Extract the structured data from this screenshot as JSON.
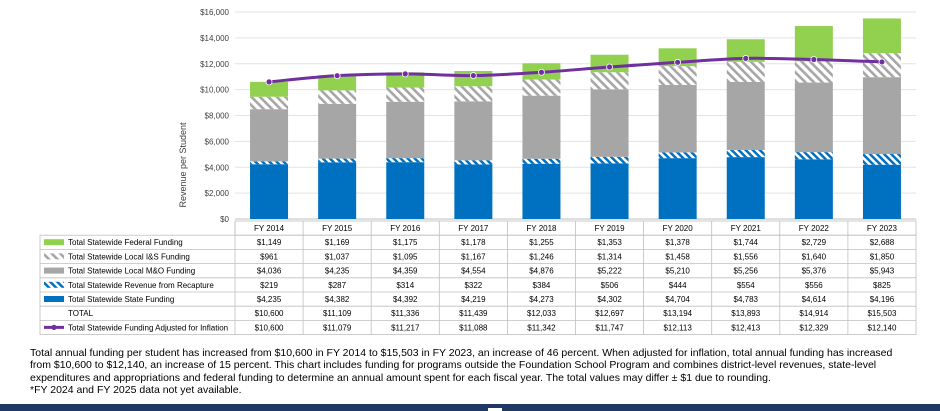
{
  "chart_data": {
    "type": "bar",
    "stacked": true,
    "ylabel": "Revenue per Student",
    "ylim": [
      0,
      16000
    ],
    "yticks": [
      "$0",
      "$2,000",
      "$4,000",
      "$6,000",
      "$8,000",
      "$10,000",
      "$12,000",
      "$14,000",
      "$16,000"
    ],
    "grid": true,
    "legend": "data-table-left",
    "categories": [
      "FY 2014",
      "FY 2015",
      "FY 2016",
      "FY 2017",
      "FY 2018",
      "FY 2019",
      "FY 2020",
      "FY 2021",
      "FY 2022",
      "FY 2023"
    ],
    "series": [
      {
        "name": "Total Statewide Federal Funding",
        "values": [
          1149,
          1169,
          1175,
          1178,
          1255,
          1353,
          1378,
          1744,
          2729,
          2688
        ],
        "labels": [
          "$1,149",
          "$1,169",
          "$1,175",
          "$1,178",
          "$1,255",
          "$1,353",
          "$1,378",
          "$1,744",
          "$2,729",
          "$2,688"
        ],
        "color": "#92d050",
        "pattern": "solid",
        "stack_order": 5
      },
      {
        "name": "Total Statewide Local I&S Funding",
        "values": [
          961,
          1037,
          1095,
          1167,
          1246,
          1314,
          1458,
          1556,
          1640,
          1850
        ],
        "labels": [
          "$961",
          "$1,037",
          "$1,095",
          "$1,167",
          "$1,246",
          "$1,314",
          "$1,458",
          "$1,556",
          "$1,640",
          "$1,850"
        ],
        "color": "#a6a6a6",
        "pattern": "hatch-gray",
        "stack_order": 4
      },
      {
        "name": "Total Statewide Local M&O Funding",
        "values": [
          4036,
          4235,
          4359,
          4554,
          4876,
          5222,
          5210,
          5256,
          5376,
          5943
        ],
        "labels": [
          "$4,036",
          "$4,235",
          "$4,359",
          "$4,554",
          "$4,876",
          "$5,222",
          "$5,210",
          "$5,256",
          "$5,376",
          "$5,943"
        ],
        "color": "#a6a6a6",
        "pattern": "solid",
        "stack_order": 3
      },
      {
        "name": "Total Statewide Revenue from Recapture",
        "values": [
          219,
          287,
          314,
          322,
          384,
          506,
          444,
          554,
          556,
          825
        ],
        "labels": [
          "$219",
          "$287",
          "$314",
          "$322",
          "$384",
          "$506",
          "$444",
          "$554",
          "$556",
          "$825"
        ],
        "color": "#2e75b6",
        "pattern": "hatch-blue",
        "stack_order": 2
      },
      {
        "name": "Total Statewide State Funding",
        "values": [
          4235,
          4382,
          4392,
          4219,
          4273,
          4302,
          4704,
          4783,
          4614,
          4196
        ],
        "labels": [
          "$4,235",
          "$4,382",
          "$4,392",
          "$4,219",
          "$4,273",
          "$4,302",
          "$4,704",
          "$4,783",
          "$4,614",
          "$4,196"
        ],
        "color": "#0070c0",
        "pattern": "solid",
        "stack_order": 1
      }
    ],
    "total": {
      "name": "TOTAL",
      "values": [
        10600,
        11109,
        11336,
        11439,
        12033,
        12697,
        13194,
        13893,
        14914,
        15503
      ],
      "labels": [
        "$10,600",
        "$11,109",
        "$11,336",
        "$11,439",
        "$12,033",
        "$12,697",
        "$13,194",
        "$13,893",
        "$14,914",
        "$15,503"
      ]
    },
    "line": {
      "name": "Total Statewide Funding Adjusted for Inflation",
      "type": "line",
      "values": [
        10600,
        11079,
        11217,
        11088,
        11342,
        11747,
        12113,
        12413,
        12329,
        12140
      ],
      "labels": [
        "$10,600",
        "$11,079",
        "$11,217",
        "$11,088",
        "$11,342",
        "$11,747",
        "$12,113",
        "$12,413",
        "$12,329",
        "$12,140"
      ],
      "color": "#7030a0"
    }
  },
  "caption": {
    "line1": "Total annual funding per student has increased from $10,600 in FY 2014 to $15,503 in FY 2023, an increase of  46 percent.  When adjusted for inflation, total annual funding has increased from $10,600 to $12,140, an increase of 15 percent.  This chart includes funding for programs outside the Foundation School Program and combines district-level revenues, state-level expenditures and appropriations and federal funding to determine an annual amount spent for each fiscal year. The total values may differ ± $1 due to rounding.",
    "line2": "*FY 2024 and FY 2025 data not yet available."
  }
}
